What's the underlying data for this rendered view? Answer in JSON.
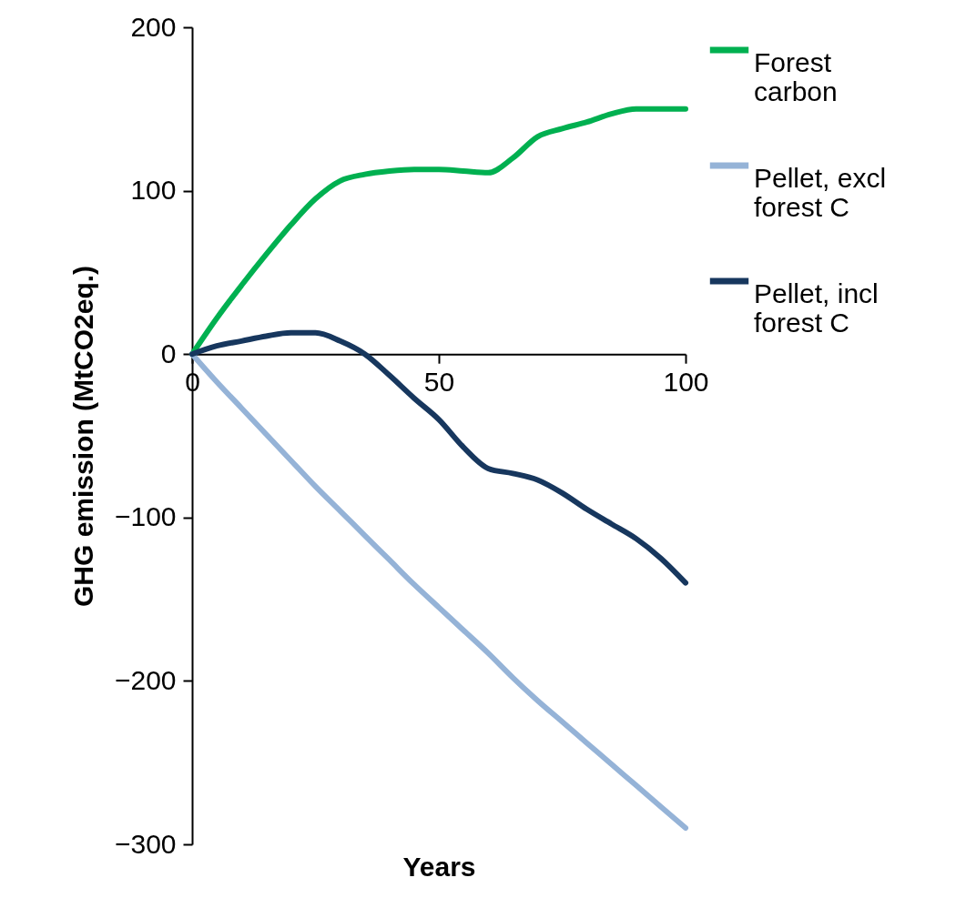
{
  "chart_data": {
    "type": "line",
    "xlabel": "Years",
    "ylabel": "GHG emission (MtCO2eq.)",
    "x": [
      0,
      5,
      10,
      15,
      20,
      25,
      30,
      35,
      40,
      45,
      50,
      55,
      60,
      65,
      70,
      75,
      80,
      85,
      90,
      95,
      100
    ],
    "xlim": [
      0,
      100
    ],
    "xticks": [
      0,
      50,
      100
    ],
    "ylim": [
      -300,
      200
    ],
    "yticks": [
      -300,
      -200,
      -100,
      0,
      100,
      200
    ],
    "grid": false,
    "legend": "right",
    "marker": "none",
    "line_style": "solid",
    "series": [
      {
        "name": "Forest carbon",
        "color": "#00b050",
        "values": [
          0,
          22,
          42,
          61,
          79,
          95,
          106,
          110,
          112,
          113,
          113,
          112,
          111,
          120,
          133,
          138,
          142,
          147,
          150,
          150,
          150
        ]
      },
      {
        "name": "Pellet, excl forest C",
        "color": "#95b3d7",
        "values": [
          0,
          -17,
          -33,
          -49,
          -65,
          -81,
          -96,
          -111,
          -126,
          -141,
          -155,
          -169,
          -183,
          -198,
          -212,
          -225,
          -238,
          -251,
          -264,
          -277,
          -290
        ]
      },
      {
        "name": "Pellet, incl forest C",
        "color": "#17375e",
        "values": [
          0,
          5,
          8,
          11,
          13,
          13,
          8,
          0,
          -13,
          -27,
          -40,
          -57,
          -70,
          -73,
          -77,
          -85,
          -95,
          -104,
          -113,
          -125,
          -140
        ]
      }
    ]
  }
}
